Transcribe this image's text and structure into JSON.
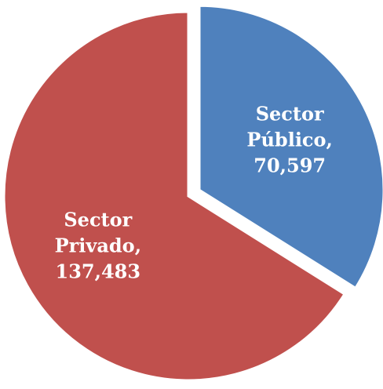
{
  "chart_data": {
    "type": "pie",
    "slices": [
      {
        "label_lines": [
          "Sector",
          "Público,",
          "70,597"
        ],
        "category": "Sector Público",
        "value": 70597,
        "color": "#4F81BD"
      },
      {
        "label_lines": [
          "Sector",
          "Privado,",
          "137,483"
        ],
        "category": "Sector Privado",
        "value": 137483,
        "color": "#C0504D"
      }
    ],
    "exploded_slice": "Sector Público",
    "legend": "none"
  }
}
